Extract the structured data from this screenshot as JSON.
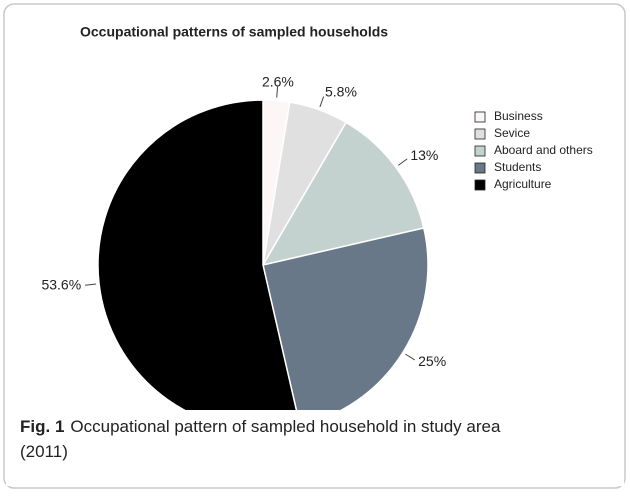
{
  "chart_data": {
    "type": "pie",
    "title": "Occupational patterns of sampled households",
    "categories": [
      "Business",
      "Sevice",
      "Aboard and others",
      "Students",
      "Agriculture"
    ],
    "values": [
      2.6,
      5.8,
      13,
      25,
      53.6
    ],
    "value_labels": [
      "2.6%",
      "5.8%",
      "13%",
      "25%",
      "53.6%"
    ],
    "colors": [
      "#fdf6f6",
      "#e0e0e0",
      "#c4d2cf",
      "#687888",
      "#000000"
    ],
    "legend": "right",
    "caption_label": "Fig. 1",
    "caption": "Occupational pattern of sampled household in study area (2011)"
  }
}
